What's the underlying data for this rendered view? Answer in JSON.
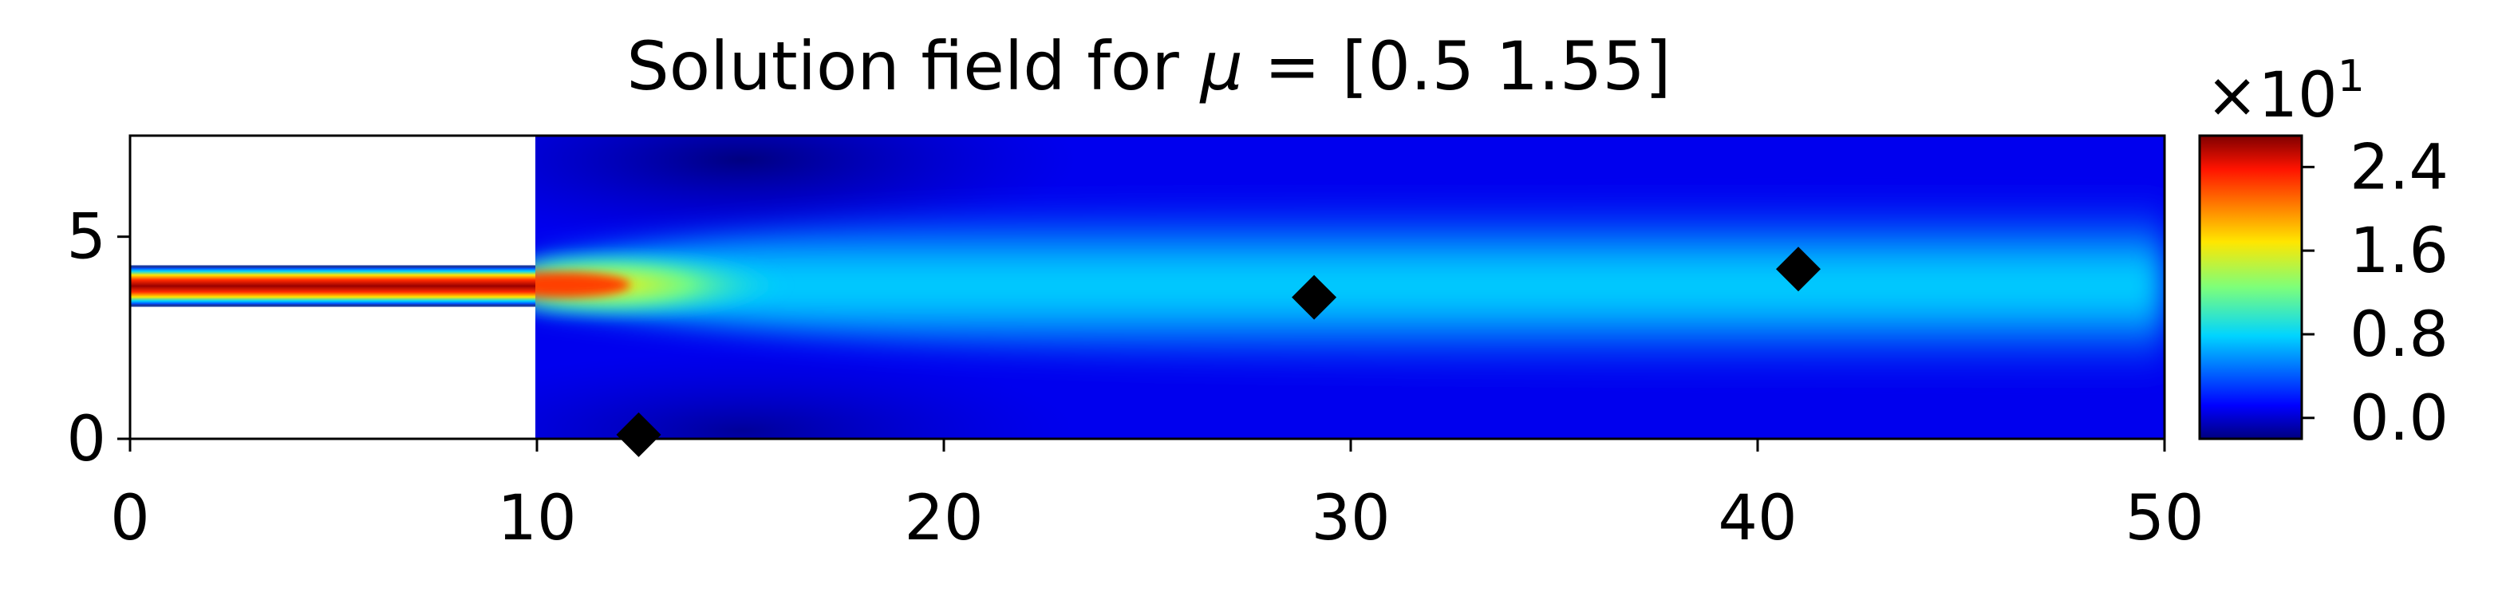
{
  "chart_data": {
    "type": "heatmap",
    "title_prefix": "Solution field for ",
    "title_symbol": "μ",
    "title_suffix": " = [0.5  1.55]",
    "xlim": [
      0,
      50
    ],
    "ylim": [
      0,
      7.5
    ],
    "x_ticks": [
      0,
      10,
      20,
      30,
      40,
      50
    ],
    "x_tick_labels": [
      "0",
      "10",
      "20",
      "30",
      "40",
      "50"
    ],
    "y_ticks": [
      0,
      5
    ],
    "y_tick_labels": [
      "0",
      "5"
    ],
    "inlet": {
      "x_end": 10,
      "y_bottom": 3.3,
      "y_top": 4.2
    },
    "colorbar": {
      "colormap": "jet",
      "range": [
        -0.2,
        2.7
      ],
      "ticks": [
        0.0,
        0.8,
        1.6,
        2.4
      ],
      "tick_labels": [
        "0.0",
        "0.8",
        "1.6",
        "2.4"
      ],
      "multiplier_base": "×10",
      "multiplier_exp": "1"
    },
    "markers": {
      "shape": "diamond",
      "color": "#000000",
      "points": [
        {
          "x": 12.5,
          "y": 0.1
        },
        {
          "x": 29.1,
          "y": 3.5
        },
        {
          "x": 41.0,
          "y": 4.2
        }
      ]
    }
  }
}
